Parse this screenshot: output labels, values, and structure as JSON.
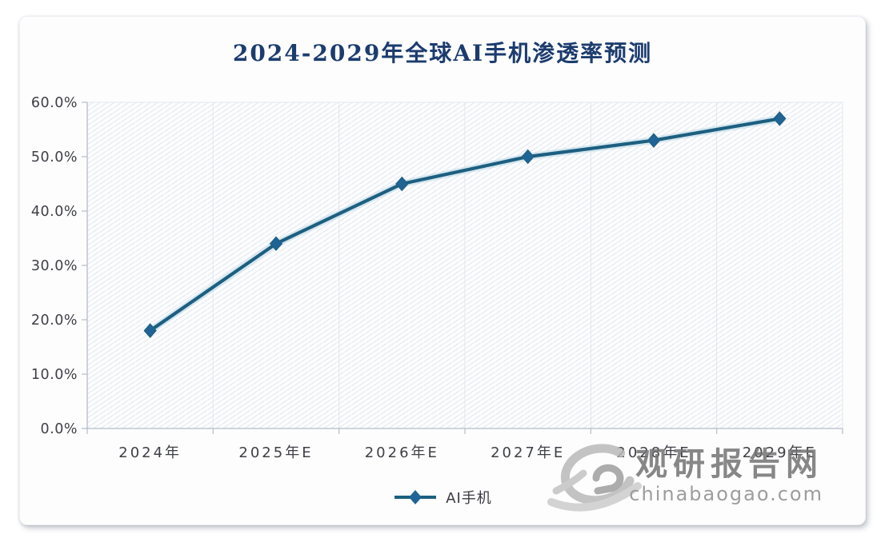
{
  "chart_data": {
    "type": "line",
    "title": "2024-2029年全球AI手机渗透率预测",
    "categories": [
      "2024年",
      "2025年E",
      "2026年E",
      "2027年E",
      "2028年E",
      "2029年E"
    ],
    "series": [
      {
        "name": "AI手机",
        "values": [
          18,
          34,
          45,
          50,
          53,
          57
        ]
      }
    ],
    "unit": "%",
    "ylim": [
      0,
      60
    ],
    "y_tick_step": 10,
    "y_tick_labels": [
      "0.0%",
      "10.0%",
      "20.0%",
      "30.0%",
      "40.0%",
      "50.0%",
      "60.0%"
    ],
    "xlabel": "",
    "ylabel": "",
    "grid": "vertical-category-boundaries",
    "plot_background": "diagonal-hatch",
    "legend_position": "bottom-center",
    "marker": "diamond",
    "colors": {
      "title": "#1c3c6e",
      "line": "#1d5f80",
      "line_halo": "#b9d8e5",
      "marker": "#1f6494",
      "axis": "#b6bdca",
      "gridline": "#e2e6ed",
      "hatch": "#e6e9ef",
      "plot_bg": "#fcfdfe",
      "tick_label": "#3f4046"
    }
  },
  "watermark": {
    "brand": "观研报告网",
    "domain": "chinabaogao.com",
    "logo": "swirl-logo"
  }
}
